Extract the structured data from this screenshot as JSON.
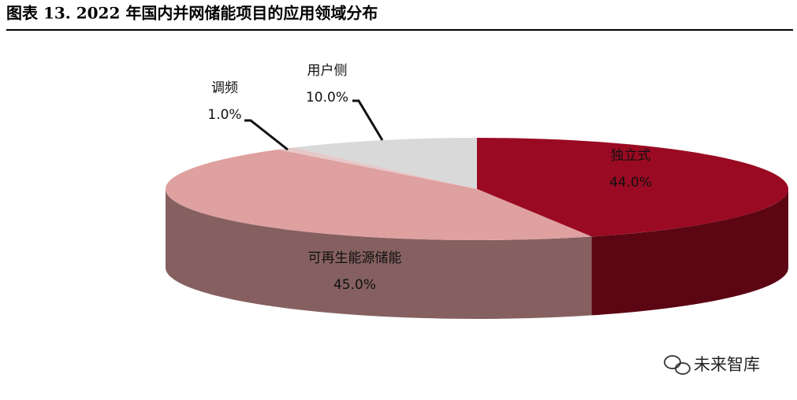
{
  "chart_data": {
    "type": "pie3d",
    "title": "图表 13. 2022 年国内并网储能项目的应用领域分布",
    "categories": [
      "独立式",
      "可再生能源储能",
      "调频",
      "用户侧"
    ],
    "values": [
      44.0,
      45.0,
      1.0,
      10.0
    ],
    "value_labels": [
      "44.0%",
      "45.0%",
      "1.0%",
      "10.0%"
    ],
    "colors": [
      "#9a0a22",
      "#dfa0a0",
      "#e6c8c8",
      "#d9d9d9"
    ],
    "watermark": "未来智库"
  }
}
